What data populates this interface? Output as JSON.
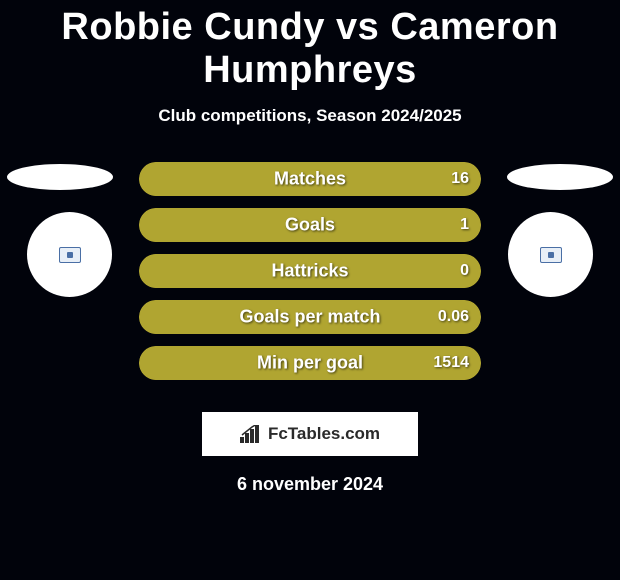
{
  "title": "Robbie Cundy vs Cameron Humphreys",
  "subtitle": "Club competitions, Season 2024/2025",
  "date": "6 november 2024",
  "logo_text": "FcTables.com",
  "colors": {
    "background": "#01030b",
    "bar_fill": "#b0a531",
    "bar_border": "#b0a531",
    "text": "#ffffff",
    "badge_bg": "#ffffff",
    "logo_bg": "#ffffff",
    "logo_text": "#2a2a2a"
  },
  "chart": {
    "type": "horizontal-bar-comparison",
    "bars": [
      {
        "label": "Matches",
        "value": "16",
        "fill_pct": 100
      },
      {
        "label": "Goals",
        "value": "1",
        "fill_pct": 100
      },
      {
        "label": "Hattricks",
        "value": "0",
        "fill_pct": 100
      },
      {
        "label": "Goals per match",
        "value": "0.06",
        "fill_pct": 100
      },
      {
        "label": "Min per goal",
        "value": "1514",
        "fill_pct": 100
      }
    ]
  }
}
